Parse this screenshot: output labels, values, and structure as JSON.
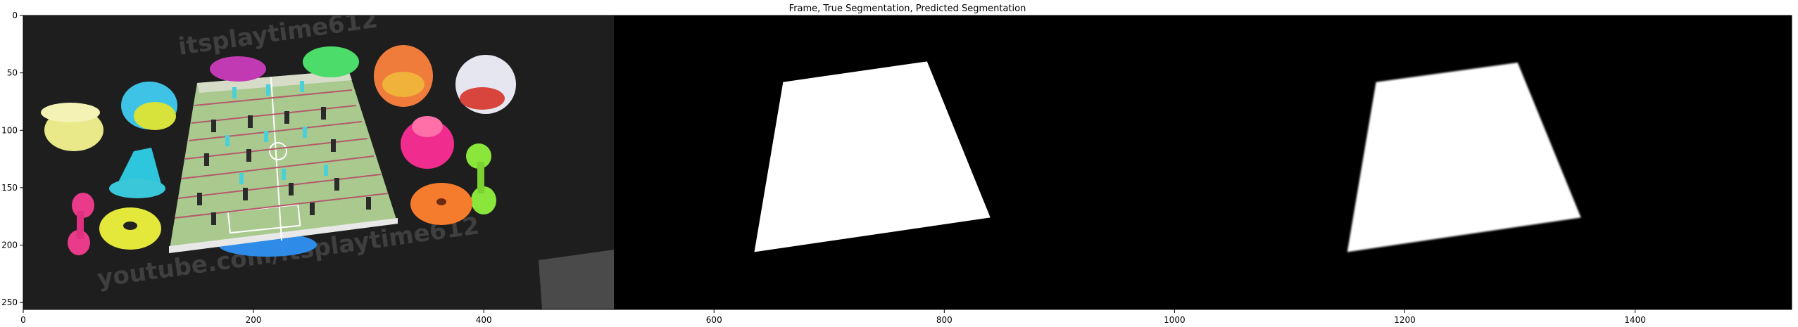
{
  "chart_data": {
    "type": "image",
    "title": "Frame, True Segmentation, Predicted Segmentation",
    "xlabel": "",
    "ylabel": "",
    "xlim": [
      0,
      1536
    ],
    "ylim": [
      256,
      0
    ],
    "x_ticks": [
      0,
      200,
      400,
      600,
      800,
      1000,
      1200,
      1400
    ],
    "y_ticks": [
      0,
      50,
      100,
      150,
      200,
      250
    ],
    "panels": [
      {
        "name": "Frame",
        "x_range": [
          0,
          512
        ],
        "watermark_top": "itsplaytime612",
        "watermark_bottom": "youtube.com/itsplaytime612",
        "region_corners": [
          [
            150,
            30
          ],
          [
            300,
            30
          ],
          [
            325,
            180
          ],
          [
            125,
            200
          ]
        ]
      },
      {
        "name": "True Segmentation",
        "x_range": [
          512,
          1024
        ],
        "mask_corners": [
          [
            660,
            58
          ],
          [
            785,
            40
          ],
          [
            840,
            176
          ],
          [
            635,
            206
          ]
        ]
      },
      {
        "name": "Predicted Segmentation",
        "x_range": [
          1024,
          1536
        ],
        "mask_corners": [
          [
            1175,
            58
          ],
          [
            1298,
            41
          ],
          [
            1353,
            176
          ],
          [
            1150,
            206
          ]
        ]
      }
    ]
  },
  "colors": {
    "axis": "#000000",
    "mask": "#ffffff",
    "background": "#000000",
    "frame_background": "#242424",
    "board_green": "#a9c98f"
  },
  "icons": [
    "toy-cup",
    "toy-cone",
    "toy-ring",
    "foosball-player"
  ]
}
